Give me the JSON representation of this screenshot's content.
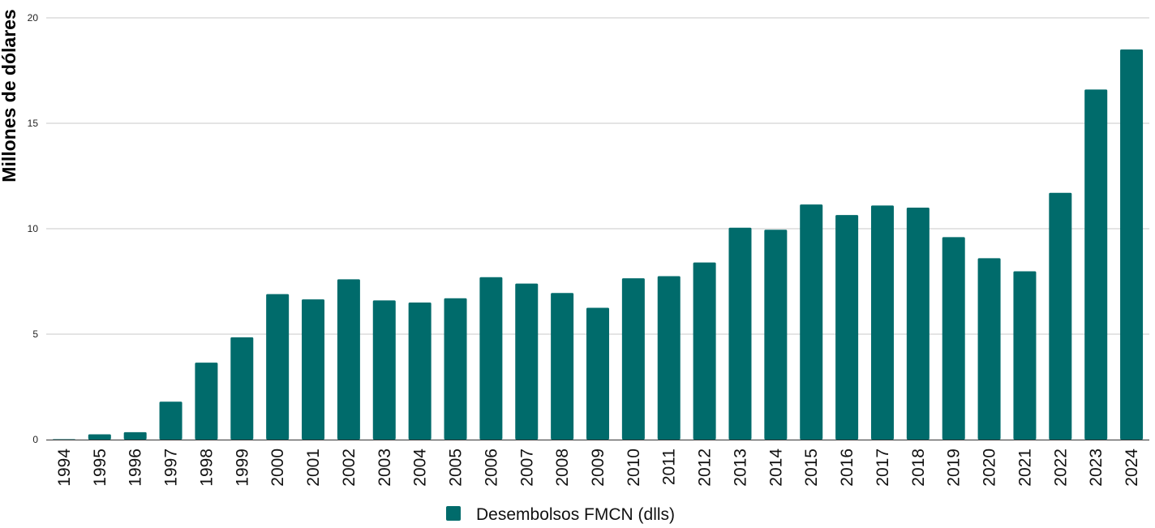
{
  "chart_data": {
    "type": "bar",
    "categories": [
      "1994",
      "1995",
      "1996",
      "1997",
      "1998",
      "1999",
      "2000",
      "2001",
      "2002",
      "2003",
      "2004",
      "2005",
      "2006",
      "2007",
      "2008",
      "2009",
      "2010",
      "2011",
      "2012",
      "2013",
      "2014",
      "2015",
      "2016",
      "2017",
      "2018",
      "2019",
      "2020",
      "2021",
      "2022",
      "2023",
      "2024"
    ],
    "series": [
      {
        "name": "Desembolsos FMCN (dlls)",
        "color": "#006b6b",
        "values": [
          0.02,
          0.25,
          0.35,
          1.8,
          3.65,
          4.85,
          6.9,
          6.65,
          7.6,
          6.6,
          6.5,
          6.7,
          7.7,
          7.4,
          6.95,
          6.25,
          7.65,
          7.75,
          8.4,
          10.05,
          9.95,
          11.15,
          10.65,
          11.1,
          11.0,
          9.6,
          8.6,
          7.98,
          11.7,
          16.6,
          18.5
        ]
      }
    ],
    "xlabel": "",
    "ylabel": "Millones de dólares",
    "ylim": [
      0,
      20
    ],
    "yticks": [
      0,
      5,
      10,
      15,
      20
    ],
    "grid": true,
    "legend": "bottom-center"
  }
}
